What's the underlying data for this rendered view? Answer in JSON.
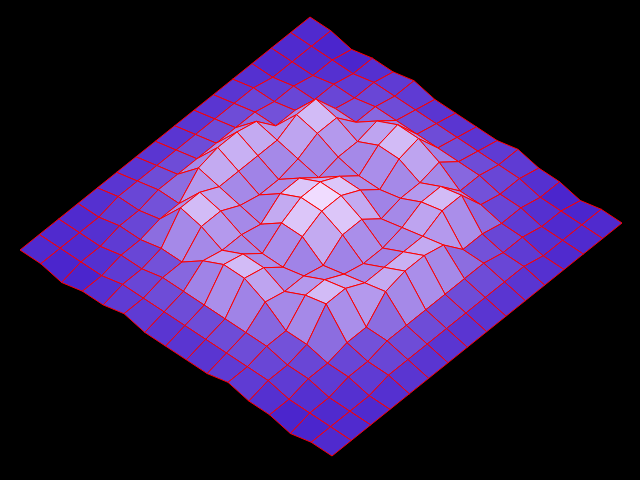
{
  "chart_data": {
    "type": "surface",
    "color": "#ff0000",
    "z": [
      [
        1,
        1,
        0,
        1,
        1,
        2,
        1,
        1,
        1,
        1,
        2,
        1,
        1,
        0,
        1,
        1
      ],
      [
        1,
        1,
        1,
        1,
        2,
        2,
        2,
        2,
        2,
        2,
        2,
        2,
        1,
        1,
        1,
        1
      ],
      [
        1,
        1,
        1,
        2,
        2,
        3,
        3,
        3,
        3,
        3,
        3,
        2,
        2,
        1,
        1,
        1
      ],
      [
        1,
        1,
        2,
        2,
        3,
        3,
        6,
        8,
        8,
        6,
        3,
        3,
        2,
        2,
        1,
        1
      ],
      [
        1,
        2,
        2,
        3,
        8,
        7,
        5,
        7,
        7,
        5,
        7,
        8,
        3,
        2,
        2,
        1
      ],
      [
        1,
        2,
        3,
        3,
        8,
        7,
        5,
        4,
        4,
        5,
        7,
        8,
        3,
        3,
        2,
        1
      ],
      [
        1,
        2,
        3,
        7,
        6,
        5,
        4,
        7,
        7,
        4,
        5,
        6,
        7,
        3,
        2,
        1
      ],
      [
        1,
        2,
        3,
        8,
        6,
        4,
        7,
        9,
        9,
        7,
        4,
        6,
        8,
        3,
        2,
        1
      ],
      [
        1,
        2,
        3,
        8,
        6,
        4,
        7,
        9,
        9,
        7,
        4,
        6,
        8,
        3,
        2,
        1
      ],
      [
        1,
        2,
        3,
        7,
        6,
        5,
        4,
        7,
        7,
        4,
        5,
        6,
        7,
        3,
        2,
        1
      ],
      [
        1,
        2,
        3,
        3,
        8,
        7,
        5,
        4,
        4,
        5,
        7,
        8,
        3,
        3,
        2,
        1
      ],
      [
        1,
        2,
        2,
        3,
        8,
        7,
        5,
        7,
        7,
        5,
        7,
        8,
        3,
        2,
        2,
        1
      ],
      [
        1,
        1,
        2,
        2,
        3,
        3,
        6,
        8,
        8,
        6,
        3,
        3,
        2,
        2,
        1,
        1
      ],
      [
        1,
        1,
        1,
        2,
        2,
        3,
        3,
        3,
        3,
        3,
        3,
        2,
        2,
        1,
        1,
        1
      ],
      [
        1,
        1,
        1,
        1,
        2,
        2,
        2,
        2,
        2,
        2,
        2,
        2,
        1,
        1,
        1,
        1
      ],
      [
        1,
        1,
        0,
        1,
        1,
        2,
        1,
        1,
        1,
        1,
        2,
        1,
        1,
        0,
        1,
        1
      ]
    ]
  }
}
